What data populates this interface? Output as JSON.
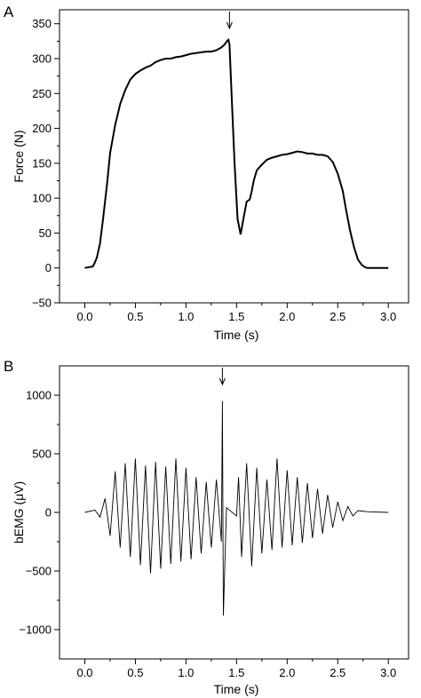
{
  "chart_data": [
    {
      "panel": "A",
      "type": "line",
      "title": "",
      "xlabel": "Time (s)",
      "ylabel": "Force (N)",
      "xlim": [
        -0.25,
        3.2
      ],
      "ylim": [
        -50,
        370
      ],
      "xticks": [
        0.0,
        0.5,
        1.0,
        1.5,
        2.0,
        2.5,
        3.0
      ],
      "xtick_labels": [
        "0.0",
        "0.5",
        "1.0",
        "1.5",
        "2.0",
        "2.5",
        "3.0"
      ],
      "yticks": [
        -50,
        0,
        50,
        100,
        150,
        200,
        250,
        300,
        350
      ],
      "ytick_labels": [
        "−50",
        "0",
        "50",
        "100",
        "150",
        "200",
        "250",
        "300",
        "350"
      ],
      "grid": false,
      "arrow_at_x": 1.43,
      "series": [
        {
          "x": [
            0.0,
            0.08,
            0.1,
            0.12,
            0.15,
            0.18,
            0.22,
            0.25,
            0.3,
            0.35,
            0.4,
            0.45,
            0.5,
            0.55,
            0.6,
            0.65,
            0.7,
            0.75,
            0.8,
            0.85,
            0.9,
            0.95,
            1.0,
            1.05,
            1.1,
            1.15,
            1.2,
            1.25,
            1.3,
            1.35,
            1.38,
            1.41,
            1.42,
            1.43,
            1.45,
            1.48,
            1.51,
            1.54,
            1.57,
            1.6,
            1.63,
            1.65,
            1.67,
            1.7,
            1.75,
            1.8,
            1.85,
            1.9,
            1.95,
            2.0,
            2.05,
            2.1,
            2.15,
            2.2,
            2.25,
            2.3,
            2.35,
            2.4,
            2.45,
            2.5,
            2.55,
            2.58,
            2.62,
            2.66,
            2.7,
            2.74,
            2.77,
            2.79,
            2.8,
            3.0
          ],
          "y": [
            0,
            2,
            8,
            15,
            35,
            70,
            120,
            165,
            205,
            235,
            255,
            270,
            278,
            283,
            287,
            290,
            295,
            298,
            300,
            300,
            302,
            303,
            305,
            307,
            308,
            309,
            310,
            310,
            312,
            316,
            320,
            326,
            327,
            320,
            250,
            150,
            70,
            48,
            72,
            95,
            98,
            110,
            125,
            140,
            148,
            155,
            158,
            160,
            162,
            163,
            165,
            167,
            166,
            164,
            164,
            162,
            162,
            160,
            152,
            135,
            110,
            85,
            55,
            30,
            12,
            4,
            1,
            0,
            0,
            0
          ]
        }
      ]
    },
    {
      "panel": "B",
      "type": "line",
      "title": "",
      "xlabel": "Time (s)",
      "ylabel": "bEMG (μV)",
      "xlim": [
        -0.25,
        3.2
      ],
      "ylim": [
        -1250,
        1250
      ],
      "xticks": [
        0.0,
        0.5,
        1.0,
        1.5,
        2.0,
        2.5,
        3.0
      ],
      "xtick_labels": [
        "0.0",
        "0.5",
        "1.0",
        "1.5",
        "2.0",
        "2.5",
        "3.0"
      ],
      "yticks": [
        -1000,
        -500,
        0,
        500,
        1000
      ],
      "ytick_labels": [
        "−1000",
        "−500",
        "0",
        "500",
        "1000"
      ],
      "grid": false,
      "arrow_at_x": 1.36,
      "series": [
        {
          "x": [
            0.0,
            0.1,
            0.15,
            0.2,
            0.25,
            0.3,
            0.35,
            0.4,
            0.45,
            0.5,
            0.55,
            0.6,
            0.65,
            0.7,
            0.75,
            0.8,
            0.85,
            0.9,
            0.95,
            1.0,
            1.05,
            1.1,
            1.15,
            1.2,
            1.25,
            1.3,
            1.35,
            1.36,
            1.37,
            1.4,
            1.5,
            1.52,
            1.55,
            1.6,
            1.65,
            1.7,
            1.75,
            1.8,
            1.85,
            1.9,
            1.95,
            2.0,
            2.05,
            2.1,
            2.15,
            2.2,
            2.25,
            2.3,
            2.35,
            2.4,
            2.45,
            2.5,
            2.55,
            2.6,
            2.65,
            2.7,
            2.8,
            3.0
          ],
          "y": [
            0,
            20,
            -40,
            120,
            -200,
            350,
            -300,
            420,
            -380,
            460,
            -450,
            400,
            -520,
            430,
            -480,
            390,
            -440,
            460,
            -420,
            380,
            -400,
            300,
            -350,
            260,
            -300,
            280,
            -250,
            950,
            -880,
            40,
            -30,
            300,
            -380,
            420,
            -460,
            380,
            -350,
            280,
            -320,
            460,
            -300,
            360,
            -280,
            300,
            -260,
            250,
            -220,
            200,
            -180,
            150,
            -130,
            90,
            -70,
            50,
            -30,
            15,
            5,
            0
          ]
        }
      ]
    }
  ]
}
